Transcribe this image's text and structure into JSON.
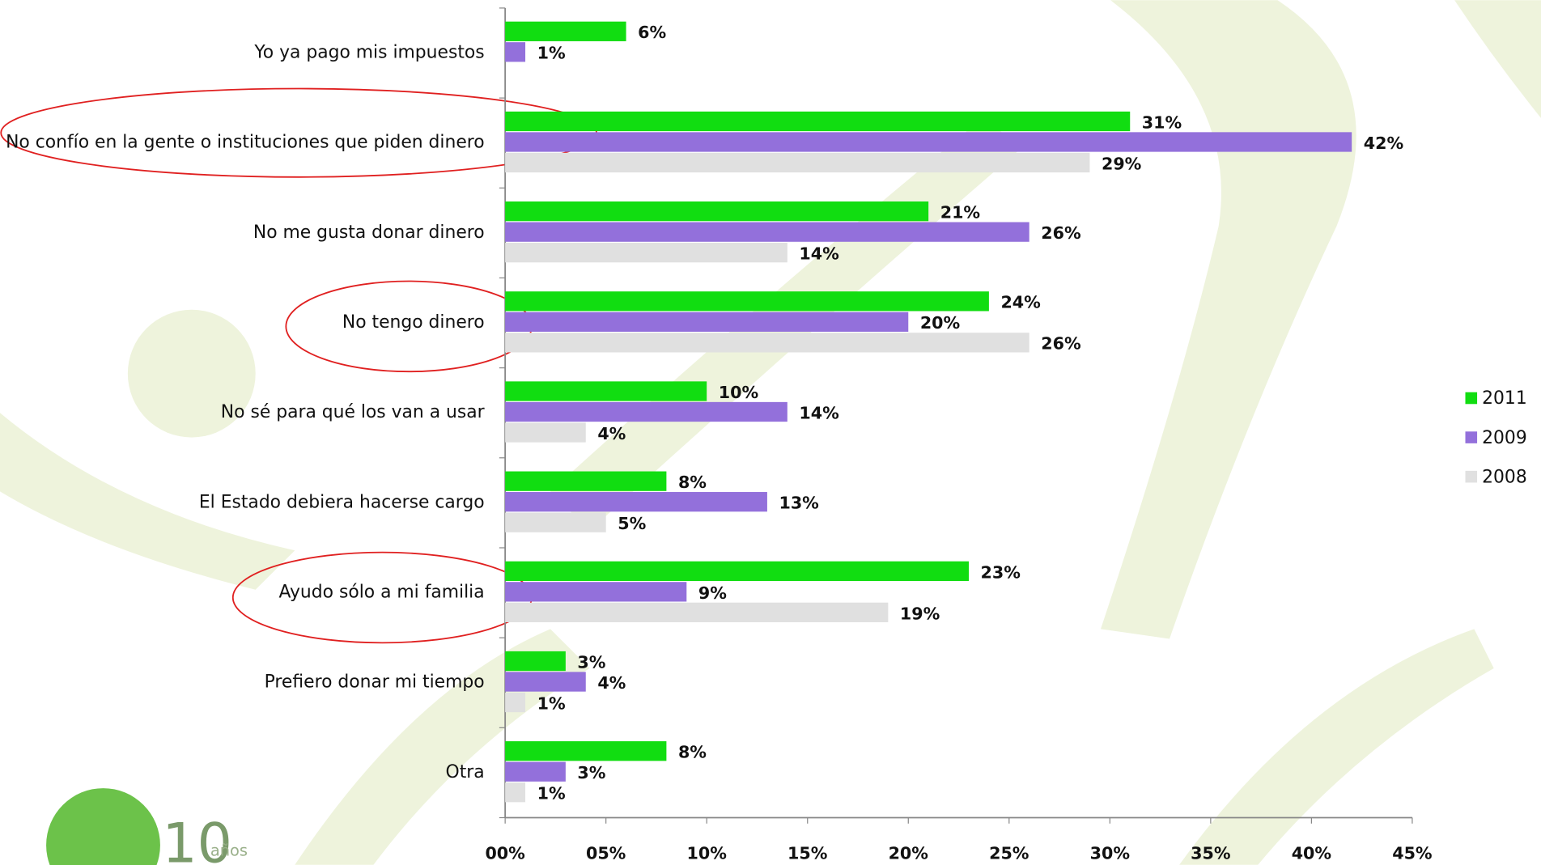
{
  "chart_data": {
    "type": "barh",
    "categories": [
      "Yo ya pago mis impuestos",
      "No confío en la gente o instituciones que piden dinero",
      "No me gusta donar dinero",
      "No tengo dinero",
      "No sé para qué los van a usar",
      "El Estado debiera hacerse cargo",
      "Ayudo sólo a mi familia",
      "Prefiero donar mi tiempo",
      "Otra"
    ],
    "series": [
      {
        "name": "2011",
        "color": "#11dd11",
        "values": [
          6,
          31,
          21,
          24,
          10,
          8,
          23,
          3,
          8
        ],
        "value_labels": [
          "6%",
          "31%",
          "21%",
          "24%",
          "10%",
          "8%",
          "23%",
          "3%",
          "8%"
        ]
      },
      {
        "name": "2009",
        "color": "#9370db",
        "values": [
          1,
          42,
          26,
          20,
          14,
          13,
          9,
          4,
          3
        ],
        "value_labels": [
          "1%",
          "42%",
          "26%",
          "20%",
          "14%",
          "13%",
          "9%",
          "4%",
          "3%"
        ]
      },
      {
        "name": "2008",
        "color": "#e0e0e0",
        "values": [
          null,
          29,
          14,
          26,
          4,
          5,
          19,
          1,
          1
        ],
        "value_labels": [
          null,
          "29%",
          "14%",
          "26%",
          "4%",
          "5%",
          "19%",
          "1%",
          "1%"
        ]
      }
    ],
    "xlim": [
      0,
      45
    ],
    "xticks": [
      {
        "value": 0,
        "label": "00%"
      },
      {
        "value": 5,
        "label": "05%"
      },
      {
        "value": 10,
        "label": "10%"
      },
      {
        "value": 15,
        "label": "15%"
      },
      {
        "value": 20,
        "label": "20%"
      },
      {
        "value": 25,
        "label": "25%"
      },
      {
        "value": 30,
        "label": "30%"
      },
      {
        "value": 35,
        "label": "35%"
      },
      {
        "value": 40,
        "label": "40%"
      },
      {
        "value": 45,
        "label": "45%"
      }
    ],
    "legend": "right"
  },
  "logo": {
    "number": "10",
    "text": "años"
  }
}
